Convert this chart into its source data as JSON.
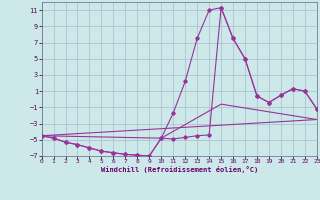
{
  "xlabel": "Windchill (Refroidissement éolien,°C)",
  "bg_color": "#cce8e8",
  "line_color": "#993399",
  "grid_color": "#aabbcc",
  "xlim": [
    0,
    23
  ],
  "ylim": [
    -7,
    12
  ],
  "xticks": [
    0,
    1,
    2,
    3,
    4,
    5,
    6,
    7,
    8,
    9,
    10,
    11,
    12,
    13,
    14,
    15,
    16,
    17,
    18,
    19,
    20,
    21,
    22,
    23
  ],
  "yticks": [
    -7,
    -5,
    -3,
    -1,
    1,
    3,
    5,
    7,
    9,
    11
  ],
  "curve1_x": [
    0,
    1,
    2,
    3,
    4,
    5,
    6,
    7,
    8,
    9,
    10,
    11,
    12,
    13,
    14,
    15,
    16,
    17,
    18,
    19,
    20,
    21,
    22,
    23
  ],
  "curve1_y": [
    -4.5,
    -4.8,
    -5.3,
    -5.6,
    -6.0,
    -6.4,
    -6.6,
    -6.8,
    -6.9,
    -7.0,
    -4.8,
    -1.7,
    2.2,
    7.5,
    11.0,
    11.3,
    7.5,
    5.0,
    0.4,
    -0.4,
    0.5,
    1.3,
    1.0,
    -1.2
  ],
  "curve2_x": [
    0,
    1,
    2,
    3,
    4,
    5,
    6,
    7,
    8,
    9,
    10,
    11,
    12,
    13,
    14,
    15,
    16,
    17,
    18,
    19,
    20,
    21,
    22,
    23
  ],
  "curve2_y": [
    -4.5,
    -4.8,
    -5.3,
    -5.6,
    -6.0,
    -6.4,
    -6.6,
    -6.8,
    -6.9,
    -7.0,
    -4.8,
    -4.9,
    -4.7,
    -4.5,
    -4.4,
    11.3,
    7.5,
    5.0,
    0.4,
    -0.4,
    0.5,
    1.3,
    1.0,
    -1.2
  ],
  "line3_x": [
    0,
    10,
    15,
    23
  ],
  "line3_y": [
    -4.5,
    -4.8,
    -0.6,
    -2.5
  ],
  "line4_x": [
    0,
    23
  ],
  "line4_y": [
    -4.5,
    -2.5
  ]
}
